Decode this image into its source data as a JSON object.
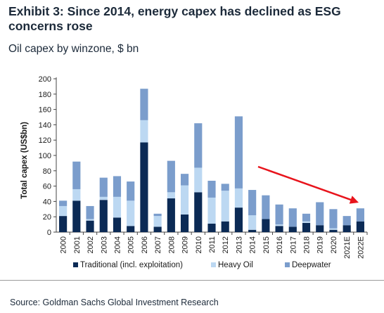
{
  "header": {
    "title": "Exhibit 3: Since 2014, energy capex has declined as ESG concerns rose",
    "subtitle": "Oil capex by winzone, $ bn"
  },
  "footer": {
    "source": "Source: Goldman Sachs Global Investment Research"
  },
  "colors": {
    "traditional": "#0b2a55",
    "heavy_oil": "#bcd8f2",
    "deepwater": "#7b9dcc",
    "arrow": "#e8141c"
  },
  "chart_data": {
    "type": "bar",
    "stacked": true,
    "title": "Exhibit 3: Since 2014, energy capex has declined as ESG concerns rose",
    "subtitle": "Oil capex by winzone, $ bn",
    "xlabel": "",
    "ylabel": "Total capex (US$bn)",
    "ylim": [
      0,
      200
    ],
    "yticks": [
      0,
      20,
      40,
      60,
      80,
      100,
      120,
      140,
      160,
      180,
      200
    ],
    "grid": false,
    "legend_position": "bottom",
    "categories": [
      "2000",
      "2001",
      "2002",
      "2003",
      "2004",
      "2005",
      "2006",
      "2007",
      "2008",
      "2009",
      "2010",
      "2011",
      "2012",
      "2013",
      "2014",
      "2015",
      "2016",
      "2017",
      "2018",
      "2019",
      "2020",
      "2021E",
      "2022E"
    ],
    "series": [
      {
        "name": "Traditional (incl. exploitation)",
        "values": [
          21,
          41,
          15,
          42,
          19,
          8,
          117,
          7,
          44,
          23,
          52,
          11,
          14,
          32,
          3,
          17,
          8,
          7,
          12,
          9,
          3,
          9,
          14
        ]
      },
      {
        "name": "Heavy Oil",
        "values": [
          13,
          15,
          2,
          4,
          27,
          33,
          29,
          14,
          8,
          38,
          32,
          34,
          40,
          25,
          19,
          0,
          2,
          0,
          2,
          0,
          2,
          0,
          0
        ]
      },
      {
        "name": "Deepwater",
        "values": [
          7,
          36,
          17,
          25,
          27,
          25,
          41,
          3,
          41,
          15,
          58,
          22,
          9,
          94,
          33,
          31,
          26,
          24,
          10,
          30,
          25,
          12,
          17
        ]
      }
    ],
    "annotations": [
      {
        "type": "arrow",
        "description": "declining trend arrow from 2014 toward 2022E"
      }
    ]
  }
}
